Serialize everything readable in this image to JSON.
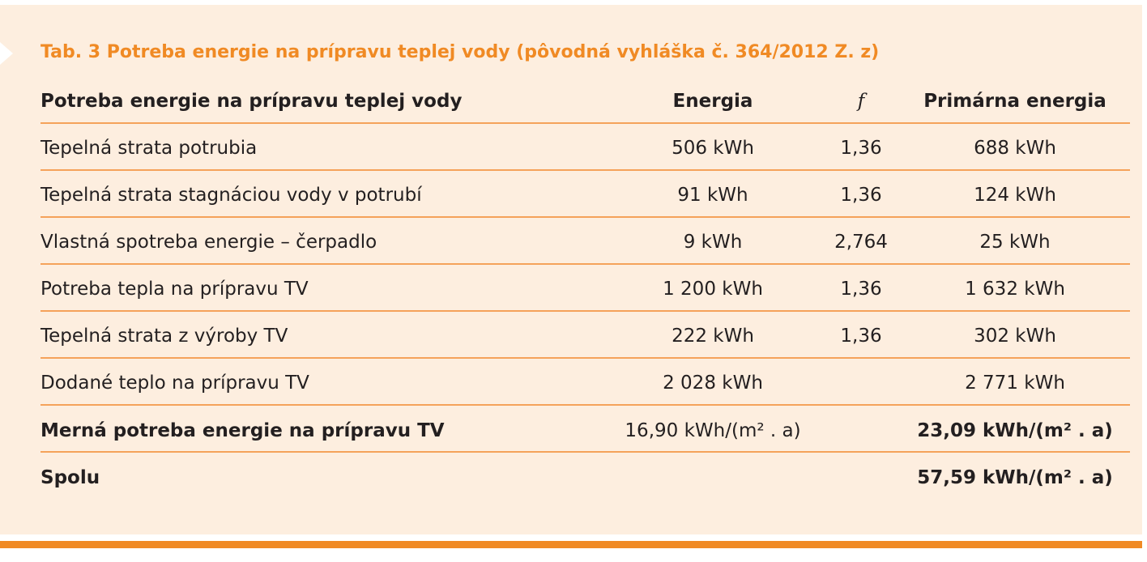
{
  "title": "Tab. 3 Potreba energie na prípravu teplej vody (pôvodná vyhláška č. 364/2012 Z. z)",
  "table": {
    "header": [
      "Potreba energie na prípravu teplej vody",
      "Energia",
      "f",
      "Primárna energia"
    ],
    "rows": [
      [
        "Tepelná strata potrubia",
        "506 kWh",
        "1,36",
        "688 kWh"
      ],
      [
        "Tepelná strata stagnáciou vody v potrubí",
        "91 kWh",
        "1,36",
        "124 kWh"
      ],
      [
        "Vlastná spotreba energie – čerpadlo",
        "9 kWh",
        "2,764",
        "25 kWh"
      ],
      [
        "Potreba tepla na prípravu TV",
        "1 200 kWh",
        "1,36",
        "1 632 kWh"
      ],
      [
        "Tepelná strata z výroby TV",
        "222 kWh",
        "1,36",
        "302 kWh"
      ],
      [
        "Dodané teplo na prípravu TV",
        "2 028 kWh",
        null,
        "2 771 kWh"
      ],
      [
        "Merná potreba energie na prípravu TV",
        "16,90 kWh/(m² . a)",
        null,
        "23,09 kWh/(m² . a)"
      ],
      [
        "Spolu",
        null,
        null,
        "57,59 kWh/(m² . a)"
      ]
    ]
  }
}
